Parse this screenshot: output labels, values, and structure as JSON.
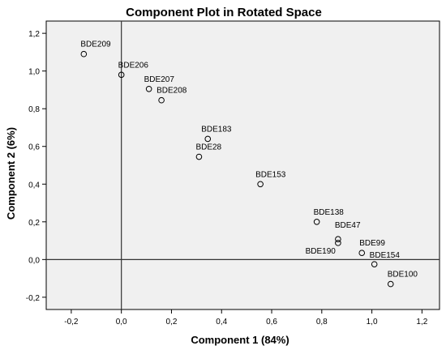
{
  "chart_data": {
    "type": "scatter",
    "title": "Component Plot in Rotated Space",
    "xlabel": "Component 1 (84%)",
    "ylabel": "Component 2 (6%)",
    "xlim": [
      -0.3,
      1.27
    ],
    "ylim": [
      -0.265,
      1.265
    ],
    "x_ticks": [
      -0.2,
      0.0,
      0.2,
      0.4,
      0.6,
      0.8,
      1.0,
      1.2
    ],
    "x_tick_labels": [
      "-0,2",
      "0,0",
      "0,2",
      "0,4",
      "0,6",
      "0,8",
      "1,0",
      "1,2"
    ],
    "y_ticks": [
      -0.2,
      0.0,
      0.2,
      0.4,
      0.6,
      0.8,
      1.0,
      1.2
    ],
    "y_tick_labels": [
      "-0,2",
      "0,0",
      "0,2",
      "0,4",
      "0,6",
      "0,8",
      "1,0",
      "1,2"
    ],
    "reference_lines": {
      "x": 0,
      "y": 0
    },
    "background": "#f0f0f0",
    "grid": false,
    "legend": "none",
    "points": [
      {
        "label": "BDE209",
        "x": -0.15,
        "y": 1.09
      },
      {
        "label": "BDE206",
        "x": 0.0,
        "y": 0.98
      },
      {
        "label": "BDE207",
        "x": 0.11,
        "y": 0.905
      },
      {
        "label": "BDE208",
        "x": 0.16,
        "y": 0.845
      },
      {
        "label": "BDE183",
        "x": 0.345,
        "y": 0.64
      },
      {
        "label": "BDE28",
        "x": 0.31,
        "y": 0.545
      },
      {
        "label": "BDE153",
        "x": 0.555,
        "y": 0.4
      },
      {
        "label": "BDE138",
        "x": 0.78,
        "y": 0.2
      },
      {
        "label": "BDE47",
        "x": 0.865,
        "y": 0.108
      },
      {
        "label": "BDE190",
        "x": 0.865,
        "y": 0.088
      },
      {
        "label": "BDE99",
        "x": 0.96,
        "y": 0.035
      },
      {
        "label": "BDE154",
        "x": 1.01,
        "y": -0.025
      },
      {
        "label": "BDE100",
        "x": 1.075,
        "y": -0.13
      }
    ]
  }
}
